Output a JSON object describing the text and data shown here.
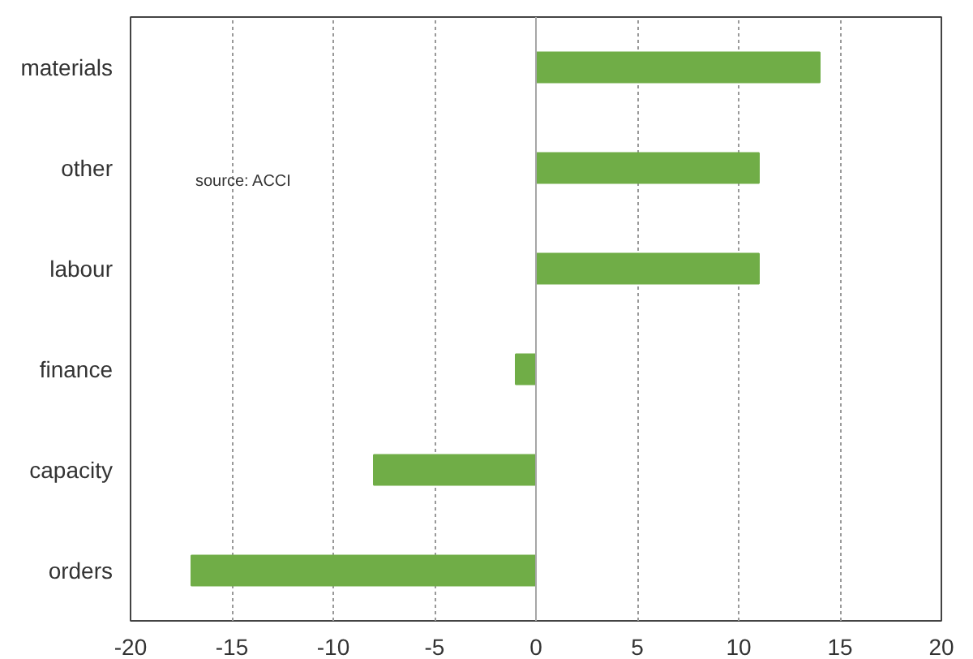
{
  "chart_data": {
    "type": "bar",
    "orientation": "horizontal",
    "categories": [
      "materials",
      "other",
      "labour",
      "finance",
      "capacity",
      "orders"
    ],
    "values": [
      14,
      11,
      11,
      -1,
      -8,
      -17
    ],
    "color": "#70ad47",
    "xlim": [
      -20,
      20
    ],
    "xticks": [
      -20,
      -15,
      -10,
      -5,
      0,
      5,
      10,
      15,
      20
    ],
    "grid": "x",
    "ref_lines": [
      {
        "axis": "x",
        "value": 0,
        "color": "#a6a6a6"
      }
    ],
    "annotations": [
      "source:  ACCI"
    ]
  }
}
